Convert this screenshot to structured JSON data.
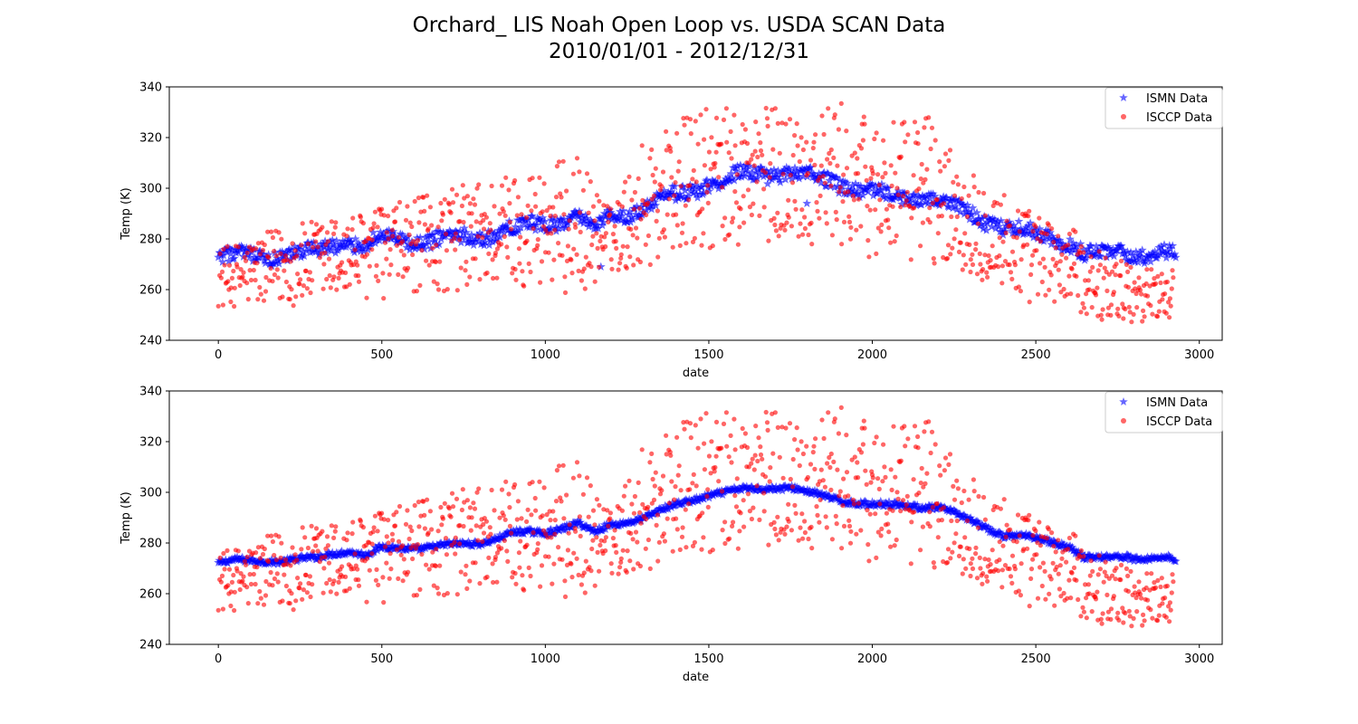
{
  "figure": {
    "title_line1": "Orchard_ LIS Noah Open Loop vs. USDA SCAN Data",
    "title_line2": "2010/01/01 - 2012/12/31"
  },
  "colors": {
    "ismn": "#0000ff",
    "isccp": "#ff0000"
  },
  "chart_data": [
    {
      "type": "scatter",
      "xlabel": "date",
      "ylabel": "Temp (K)",
      "xlim": [
        -150,
        3070
      ],
      "ylim": [
        240,
        340
      ],
      "xticks": [
        0,
        500,
        1000,
        1500,
        2000,
        2500,
        3000
      ],
      "yticks": [
        240,
        260,
        280,
        300,
        320,
        340
      ],
      "legend_position": "top-right",
      "series": [
        {
          "name": "ISMN Data",
          "marker": "star",
          "trend": {
            "x": [
              0,
              50,
              100,
              200,
              300,
              350,
              400,
              450,
              500,
              600,
              700,
              800,
              900,
              1000,
              1100,
              1150,
              1200,
              1300,
              1400,
              1500,
              1600,
              1700,
              1750,
              1800,
              1900,
              2000,
              2100,
              2200,
              2300,
              2400,
              2500,
              2600,
              2650,
              2700,
              2780,
              2800,
              2900,
              2930
            ],
            "y": [
              272,
              273,
              273,
              273,
              275,
              278,
              279,
              277,
              280,
              279,
              280,
              281,
              284,
              286,
              289,
              284,
              289,
              292,
              297,
              302,
              305,
              306,
              307,
              305,
              302,
              298,
              296,
              296,
              290,
              285,
              282,
              279,
              274,
              274,
              275,
              274,
              274,
              273
            ]
          },
          "spread": 3,
          "outliers": [
            {
              "x": 1170,
              "y": 269
            },
            {
              "x": 1800,
              "y": 294
            }
          ]
        },
        {
          "name": "ISCCP Data",
          "marker": "circle",
          "points_x_range": [
            0,
            2920
          ],
          "upper_envelope": {
            "x": [
              0,
              200,
              400,
              600,
              800,
              1000,
              1100,
              1200,
              1300,
              1400,
              1500,
              1600,
              1700,
              1800,
              1900,
              2000,
              2100,
              2160,
              2200,
              2300,
              2400,
              2500,
              2600,
              2700,
              2800,
              2920
            ],
            "y": [
              276,
              285,
              290,
              296,
              304,
              310,
              313,
              292,
              320,
              328,
              332,
              332,
              333,
              331,
              334,
              328,
              326,
              336,
              320,
              310,
              300,
              290,
              285,
              275,
              270,
              268
            ]
          },
          "lower_envelope": {
            "x": [
              0,
              200,
              400,
              600,
              800,
              1000,
              1100,
              1200,
              1300,
              1400,
              1500,
              1600,
              1700,
              1800,
              1900,
              2000,
              2100,
              2200,
              2300,
              2400,
              2500,
              2600,
              2700,
              2800,
              2920
            ],
            "y": [
              253,
              253,
              255,
              258,
              260,
              262,
              256,
              267,
              268,
              274,
              274,
              276,
              278,
              278,
              276,
              272,
              271,
              270,
              266,
              258,
              254,
              252,
              248,
              247,
              249
            ]
          }
        }
      ]
    },
    {
      "type": "scatter",
      "xlabel": "date",
      "ylabel": "Temp (K)",
      "xlim": [
        -150,
        3070
      ],
      "ylim": [
        240,
        340
      ],
      "xticks": [
        0,
        500,
        1000,
        1500,
        2000,
        2500,
        3000
      ],
      "yticks": [
        240,
        260,
        280,
        300,
        320,
        340
      ],
      "legend_position": "top-right",
      "series": [
        {
          "name": "ISMN Data",
          "marker": "star",
          "trend": {
            "x": [
              0,
              50,
              100,
              200,
              300,
              350,
              400,
              450,
              500,
              600,
              700,
              800,
              900,
              1000,
              1100,
              1150,
              1200,
              1300,
              1400,
              1500,
              1600,
              1700,
              1750,
              1800,
              1900,
              2000,
              2100,
              2200,
              2300,
              2400,
              2500,
              2600,
              2650,
              2700,
              2780,
              2800,
              2900,
              2930
            ],
            "y": [
              272,
              273,
              273,
              273,
              274,
              276,
              277,
              275,
              278,
              278,
              279,
              280,
              284,
              284,
              288,
              284,
              287,
              290,
              295,
              299,
              301,
              302,
              302,
              300,
              297,
              295,
              295,
              294,
              289,
              283,
              282,
              279,
              274,
              274,
              275,
              274,
              274,
              273
            ]
          },
          "spread": 1,
          "outliers": []
        },
        {
          "name": "ISCCP Data",
          "marker": "circle",
          "points_x_range": [
            0,
            2920
          ],
          "upper_envelope": {
            "x": [
              0,
              200,
              400,
              600,
              800,
              1000,
              1100,
              1200,
              1300,
              1400,
              1500,
              1600,
              1700,
              1800,
              1900,
              2000,
              2100,
              2160,
              2200,
              2300,
              2400,
              2500,
              2600,
              2700,
              2800,
              2920
            ],
            "y": [
              276,
              285,
              290,
              296,
              304,
              310,
              313,
              292,
              320,
              328,
              332,
              332,
              333,
              331,
              334,
              328,
              326,
              336,
              320,
              310,
              300,
              290,
              285,
              275,
              270,
              268
            ]
          },
          "lower_envelope": {
            "x": [
              0,
              200,
              400,
              600,
              800,
              1000,
              1100,
              1200,
              1300,
              1400,
              1500,
              1600,
              1700,
              1800,
              1900,
              2000,
              2100,
              2200,
              2300,
              2400,
              2500,
              2600,
              2700,
              2800,
              2920
            ],
            "y": [
              253,
              253,
              255,
              258,
              260,
              262,
              256,
              267,
              268,
              274,
              274,
              276,
              278,
              278,
              276,
              272,
              271,
              270,
              266,
              258,
              254,
              252,
              248,
              247,
              249
            ]
          }
        }
      ]
    }
  ]
}
